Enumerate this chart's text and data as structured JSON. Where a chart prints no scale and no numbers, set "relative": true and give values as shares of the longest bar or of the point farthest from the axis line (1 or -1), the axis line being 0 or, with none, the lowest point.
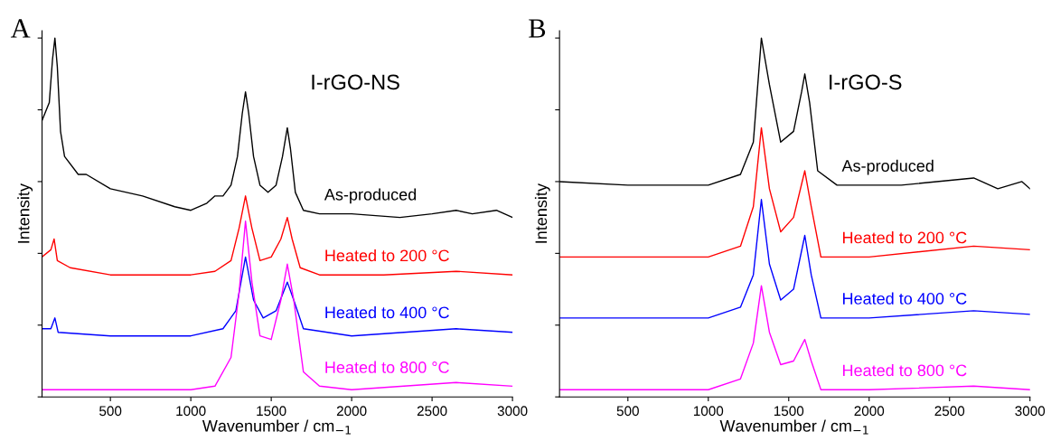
{
  "chart_data": [
    {
      "type": "line",
      "title": "A",
      "subtitle": "I-rGO-NS",
      "xlabel": "Wavenumber / cm$_{−1}$",
      "ylabel": "Intensity",
      "relative": true,
      "tick_labels": "x",
      "legend": false,
      "grid": false,
      "xlim": [
        75,
        3000
      ],
      "xticks": [
        500,
        1000,
        1500,
        2000,
        2500,
        3000
      ],
      "series": [
        {
          "name": "As-produced",
          "color": "#000000",
          "x": [
            75,
            120,
            140,
            155,
            170,
            190,
            215,
            300,
            350,
            500,
            700,
            900,
            1000,
            1100,
            1150,
            1200,
            1250,
            1290,
            1320,
            1340,
            1360,
            1390,
            1430,
            1480,
            1530,
            1570,
            1600,
            1620,
            1650,
            1700,
            1800,
            2000,
            2300,
            2500,
            2650,
            2750,
            2900,
            3000
          ],
          "values": [
            0.77,
            0.82,
            0.94,
            1.0,
            0.92,
            0.74,
            0.67,
            0.62,
            0.62,
            0.58,
            0.56,
            0.53,
            0.52,
            0.54,
            0.56,
            0.56,
            0.59,
            0.67,
            0.79,
            0.85,
            0.79,
            0.67,
            0.59,
            0.57,
            0.59,
            0.67,
            0.75,
            0.69,
            0.57,
            0.52,
            0.51,
            0.51,
            0.5,
            0.51,
            0.52,
            0.51,
            0.52,
            0.5
          ]
        },
        {
          "name": "Heated to 200 °C",
          "color": "#ff0000",
          "x": [
            75,
            130,
            150,
            170,
            250,
            500,
            1000,
            1150,
            1250,
            1300,
            1340,
            1380,
            1430,
            1500,
            1560,
            1600,
            1630,
            1680,
            1800,
            2200,
            2650,
            3000
          ],
          "values": [
            0.39,
            0.41,
            0.44,
            0.38,
            0.36,
            0.34,
            0.34,
            0.35,
            0.38,
            0.47,
            0.56,
            0.47,
            0.38,
            0.39,
            0.44,
            0.5,
            0.44,
            0.36,
            0.34,
            0.34,
            0.35,
            0.34
          ]
        },
        {
          "name": "Heated to 400 °C",
          "color": "#0000ff",
          "x": [
            75,
            130,
            155,
            175,
            500,
            1000,
            1200,
            1280,
            1340,
            1390,
            1450,
            1530,
            1600,
            1640,
            1700,
            2000,
            2650,
            3000
          ],
          "values": [
            0.19,
            0.19,
            0.22,
            0.18,
            0.17,
            0.17,
            0.19,
            0.24,
            0.39,
            0.27,
            0.22,
            0.24,
            0.32,
            0.27,
            0.19,
            0.17,
            0.19,
            0.18
          ]
        },
        {
          "name": "Heated to 800 °C",
          "color": "#ff00ff",
          "x": [
            75,
            500,
            1000,
            1150,
            1250,
            1300,
            1340,
            1380,
            1430,
            1500,
            1560,
            1600,
            1640,
            1700,
            1800,
            2000,
            2650,
            3000
          ],
          "values": [
            0.02,
            0.02,
            0.02,
            0.03,
            0.11,
            0.29,
            0.49,
            0.32,
            0.17,
            0.16,
            0.27,
            0.37,
            0.27,
            0.07,
            0.03,
            0.02,
            0.04,
            0.03
          ]
        }
      ]
    },
    {
      "type": "line",
      "title": "B",
      "subtitle": "I-rGO-S",
      "xlabel": "Wavenumber / cm$_{−1}$",
      "ylabel": "Intensity",
      "relative": true,
      "tick_labels": "x",
      "legend": false,
      "grid": false,
      "xlim": [
        75,
        3000
      ],
      "xticks": [
        500,
        1000,
        1500,
        2000,
        2500,
        3000
      ],
      "series": [
        {
          "name": "As-produced",
          "color": "#000000",
          "x": [
            75,
            500,
            1000,
            1200,
            1280,
            1330,
            1380,
            1450,
            1530,
            1580,
            1600,
            1630,
            1680,
            1800,
            2200,
            2650,
            2800,
            2950,
            3000
          ],
          "values": [
            0.6,
            0.59,
            0.59,
            0.62,
            0.71,
            1.0,
            0.87,
            0.71,
            0.74,
            0.85,
            0.9,
            0.82,
            0.63,
            0.59,
            0.59,
            0.61,
            0.58,
            0.6,
            0.58
          ]
        },
        {
          "name": "Heated to 200 °C",
          "color": "#ff0000",
          "x": [
            75,
            500,
            1000,
            1200,
            1280,
            1330,
            1380,
            1450,
            1530,
            1600,
            1640,
            1700,
            2000,
            2650,
            3000
          ],
          "values": [
            0.39,
            0.39,
            0.39,
            0.42,
            0.53,
            0.75,
            0.58,
            0.46,
            0.5,
            0.63,
            0.53,
            0.39,
            0.39,
            0.42,
            0.41
          ]
        },
        {
          "name": "Heated to 400 °C",
          "color": "#0000ff",
          "x": [
            75,
            500,
            1000,
            1200,
            1280,
            1330,
            1380,
            1450,
            1530,
            1600,
            1640,
            1700,
            2000,
            2650,
            3000
          ],
          "values": [
            0.22,
            0.22,
            0.22,
            0.25,
            0.34,
            0.55,
            0.37,
            0.27,
            0.3,
            0.45,
            0.34,
            0.22,
            0.22,
            0.24,
            0.23
          ]
        },
        {
          "name": "Heated to 800 °C",
          "color": "#ff00ff",
          "x": [
            75,
            500,
            1000,
            1200,
            1280,
            1330,
            1380,
            1450,
            1530,
            1600,
            1640,
            1700,
            2000,
            2650,
            3000
          ],
          "values": [
            0.02,
            0.02,
            0.02,
            0.05,
            0.15,
            0.31,
            0.18,
            0.09,
            0.1,
            0.16,
            0.1,
            0.02,
            0.02,
            0.03,
            0.02
          ]
        }
      ]
    }
  ]
}
